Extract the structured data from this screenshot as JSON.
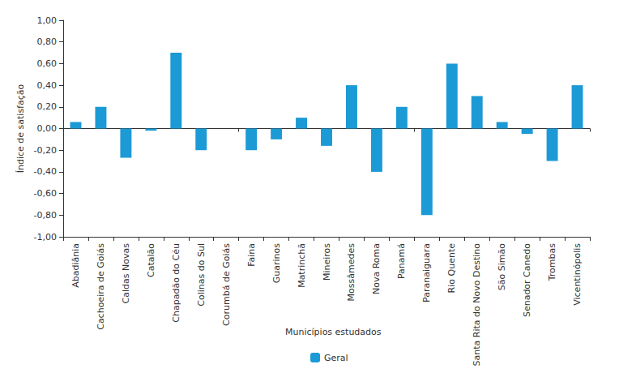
{
  "chart_data": {
    "type": "bar",
    "x_label": "Municípios estudados",
    "y_label": "Índice de satisfação",
    "categories": [
      "Abadiânia",
      "Cachoeira de Goiás",
      "Caldas Novas",
      "Catalão",
      "Chapadão do Céu",
      "Colinas do Sul",
      "Corumbá de Goiás",
      "Faina",
      "Guarinos",
      "Matrinchã",
      "Mineiros",
      "Mossâmedes",
      "Nova Roma",
      "Panamá",
      "Paranaiguara",
      "Rio Quente",
      "Santa Rita do Novo Destino",
      "São Simão",
      "Senador Canedo",
      "Trombas",
      "Vicentinópolis"
    ],
    "series": [
      {
        "name": "Geral",
        "color": "#1b9ad6",
        "values": [
          0.06,
          0.2,
          -0.27,
          -0.02,
          0.7,
          -0.2,
          0,
          -0.2,
          -0.1,
          0.1,
          -0.16,
          0.4,
          -0.4,
          0.2,
          -0.8,
          0.6,
          0.3,
          0.06,
          -0.05,
          -0.3,
          0.4
        ]
      }
    ],
    "ylim": [
      -1,
      1
    ],
    "yticks": [
      {
        "value": -1,
        "label": "-1,00"
      },
      {
        "value": -0.8,
        "label": "-0,80"
      },
      {
        "value": -0.6,
        "label": "-0,60"
      },
      {
        "value": -0.4,
        "label": "-0,40"
      },
      {
        "value": -0.2,
        "label": "-0,20"
      },
      {
        "value": 0,
        "label": "0,00"
      },
      {
        "value": 0.2,
        "label": "0,20"
      },
      {
        "value": 0.4,
        "label": "0,40"
      },
      {
        "value": 0.6,
        "label": "0,60"
      },
      {
        "value": 0.8,
        "label": "0,80"
      },
      {
        "value": 1,
        "label": "1,00"
      }
    ],
    "grid": false,
    "legend": "bottom"
  }
}
